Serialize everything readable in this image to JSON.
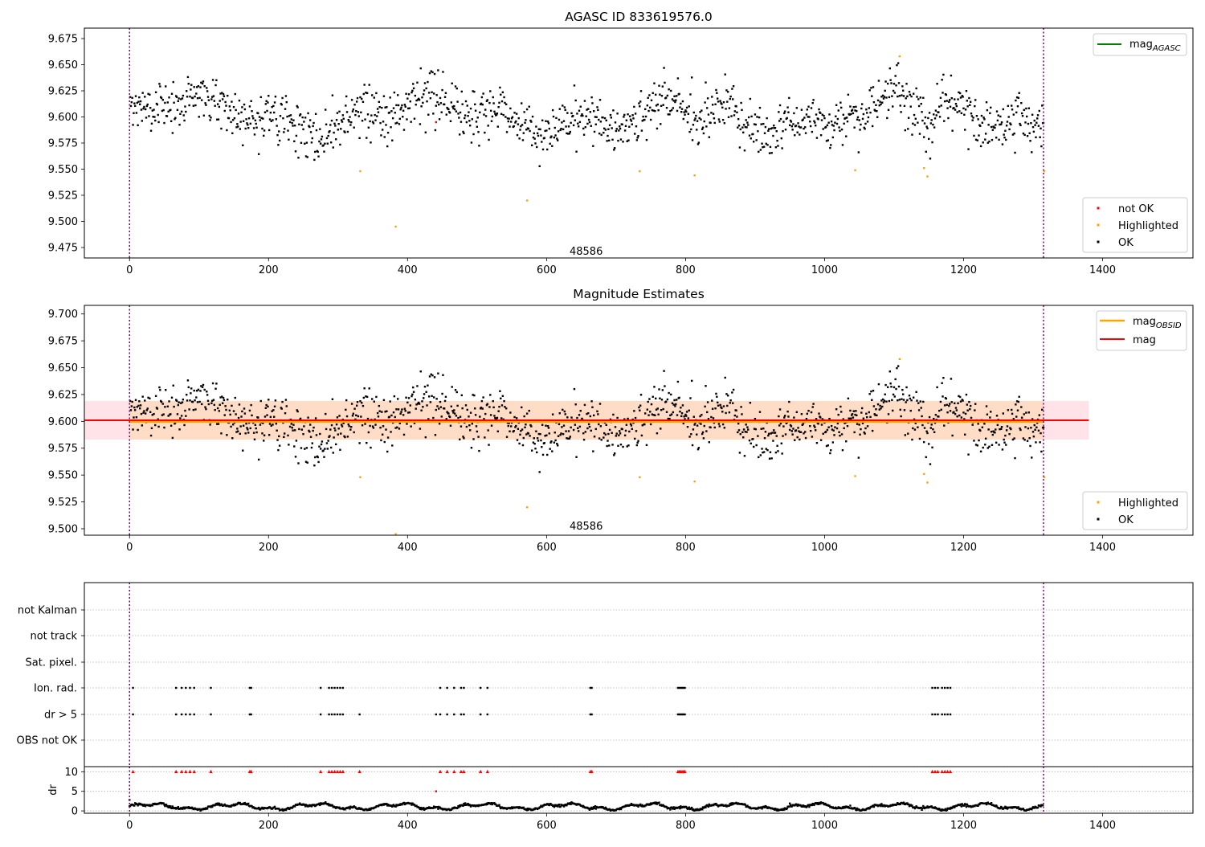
{
  "figure": {
    "background": "#ffffff",
    "colors": {
      "ok": "#000000",
      "highlighted": "#ffa500",
      "not_ok": "#ff0000",
      "mag_agasc": "#008000",
      "mag_obsid": "#ffa500",
      "mag": "#ff0000",
      "obsid_line": "#800080",
      "band_mag": "#ffc0cb",
      "band_obsid": "#ffdab9",
      "grid": "#b0b0b0"
    }
  },
  "chart_data": [
    {
      "id": "agasc",
      "type": "scatter",
      "title": "AGASC ID 833619576.0",
      "xlim": [
        -65,
        1530
      ],
      "ylim": [
        9.465,
        9.685
      ],
      "x_ticks": [
        "0",
        "200",
        "400",
        "600",
        "800",
        "1000",
        "1200",
        "1400"
      ],
      "y_ticks": [
        "9.475",
        "9.500",
        "9.525",
        "9.550",
        "9.575",
        "9.600",
        "9.625",
        "9.650",
        "9.675"
      ],
      "obsid_boundaries": [
        0,
        1315
      ],
      "obsid_label": {
        "text": "48586",
        "x": 657,
        "y": 9.472
      },
      "legend_lines": [
        {
          "label": "mag",
          "sub": "AGASC",
          "color": "#008000"
        }
      ],
      "legend_markers": [
        {
          "label": "not OK",
          "color": "#ff0000"
        },
        {
          "label": "Highlighted",
          "color": "#ffa500"
        },
        {
          "label": "OK",
          "color": "#000000"
        }
      ],
      "n_points": 1315,
      "highlighted_points": [
        [
          332,
          9.548
        ],
        [
          383,
          9.495
        ],
        [
          572,
          9.52
        ],
        [
          734,
          9.548
        ],
        [
          813,
          9.544
        ],
        [
          1044,
          9.549
        ],
        [
          1108,
          9.658
        ],
        [
          1143,
          9.551
        ],
        [
          1148,
          9.543
        ],
        [
          1316,
          9.548
        ]
      ],
      "not_ok_points": [
        [
          441,
          9.595
        ]
      ]
    },
    {
      "id": "estimates",
      "type": "scatter",
      "title": "Magnitude Estimates",
      "xlim": [
        -65,
        1530
      ],
      "ylim": [
        9.494,
        9.708
      ],
      "x_ticks": [
        "0",
        "200",
        "400",
        "600",
        "800",
        "1000",
        "1200",
        "1400"
      ],
      "y_ticks": [
        "9.500",
        "9.525",
        "9.550",
        "9.575",
        "9.600",
        "9.625",
        "9.650",
        "9.675",
        "9.700"
      ],
      "obsid_boundaries": [
        0,
        1315
      ],
      "obsid_label": {
        "text": "48586",
        "x": 657,
        "y": 9.503
      },
      "mag": 9.601,
      "mag_band": [
        9.583,
        9.619
      ],
      "mag_span": [
        -65,
        1380
      ],
      "mag_obsid": 9.6,
      "mag_obsid_band": [
        9.583,
        9.619
      ],
      "mag_obsid_span": [
        0,
        1315
      ],
      "legend_lines": [
        {
          "label": "mag",
          "sub": "OBSID",
          "color": "#ffa500"
        },
        {
          "label": "mag",
          "sub": "",
          "color": "#ff0000"
        }
      ],
      "legend_markers": [
        {
          "label": "Highlighted",
          "color": "#ffa500"
        },
        {
          "label": "OK",
          "color": "#000000"
        }
      ],
      "n_points": 1315,
      "highlighted_points": [
        [
          332,
          9.548
        ],
        [
          383,
          9.495
        ],
        [
          572,
          9.52
        ],
        [
          734,
          9.548
        ],
        [
          813,
          9.544
        ],
        [
          1044,
          9.549
        ],
        [
          1108,
          9.658
        ],
        [
          1143,
          9.551
        ],
        [
          1148,
          9.543
        ],
        [
          1316,
          9.548
        ]
      ]
    },
    {
      "id": "flags",
      "type": "scatter",
      "xlim": [
        -65,
        1530
      ],
      "categories": [
        "not Kalman",
        "not track",
        "Sat. pixel.",
        "Ion. rad.",
        "dr > 5",
        "OBS not OK"
      ],
      "obsid_boundaries": [
        0,
        1315
      ],
      "flag_indices": [
        5,
        67,
        75,
        81,
        87,
        93,
        117,
        173,
        175,
        275,
        287,
        291,
        295,
        299,
        303,
        307,
        331,
        441,
        447,
        457,
        467,
        477,
        481,
        505,
        515,
        663,
        665,
        789,
        791,
        793,
        795,
        797,
        799,
        1155,
        1159,
        1163,
        1169,
        1173,
        1177,
        1181
      ],
      "flag_rows": {
        "Ion. rad.": [
          5,
          67,
          75,
          81,
          87,
          93,
          117,
          173,
          175,
          275,
          287,
          291,
          295,
          299,
          303,
          307,
          447,
          457,
          467,
          477,
          481,
          505,
          515,
          663,
          665,
          789,
          791,
          793,
          795,
          797,
          799,
          1155,
          1159,
          1163,
          1169,
          1173,
          1177,
          1181
        ],
        "dr > 5": [
          5,
          67,
          75,
          81,
          87,
          93,
          117,
          173,
          175,
          275,
          287,
          291,
          295,
          299,
          303,
          307,
          331,
          441,
          447,
          457,
          467,
          477,
          481,
          505,
          515,
          663,
          665,
          789,
          791,
          793,
          795,
          797,
          799,
          1155,
          1159,
          1163,
          1169,
          1173,
          1177,
          1181
        ]
      }
    },
    {
      "id": "dr",
      "type": "scatter",
      "ylabel": "dr",
      "xlim": [
        -65,
        1530
      ],
      "ylim": [
        -0.6,
        11.3
      ],
      "x_ticks": [
        "0",
        "200",
        "400",
        "600",
        "800",
        "1000",
        "1200",
        "1400"
      ],
      "y_ticks": [
        "0",
        "5",
        "10"
      ],
      "obsid_boundaries": [
        0,
        1315
      ],
      "clip_value": 10,
      "clipped_indices": [
        5,
        67,
        75,
        81,
        87,
        93,
        117,
        173,
        175,
        275,
        287,
        291,
        295,
        299,
        303,
        307,
        331,
        447,
        457,
        467,
        477,
        481,
        505,
        515,
        663,
        665,
        789,
        791,
        793,
        795,
        797,
        799,
        1155,
        1159,
        1163,
        1169,
        1173,
        1177,
        1181
      ],
      "extra_points": [
        [
          0,
          2.8
        ],
        [
          441,
          5.0
        ]
      ]
    }
  ]
}
